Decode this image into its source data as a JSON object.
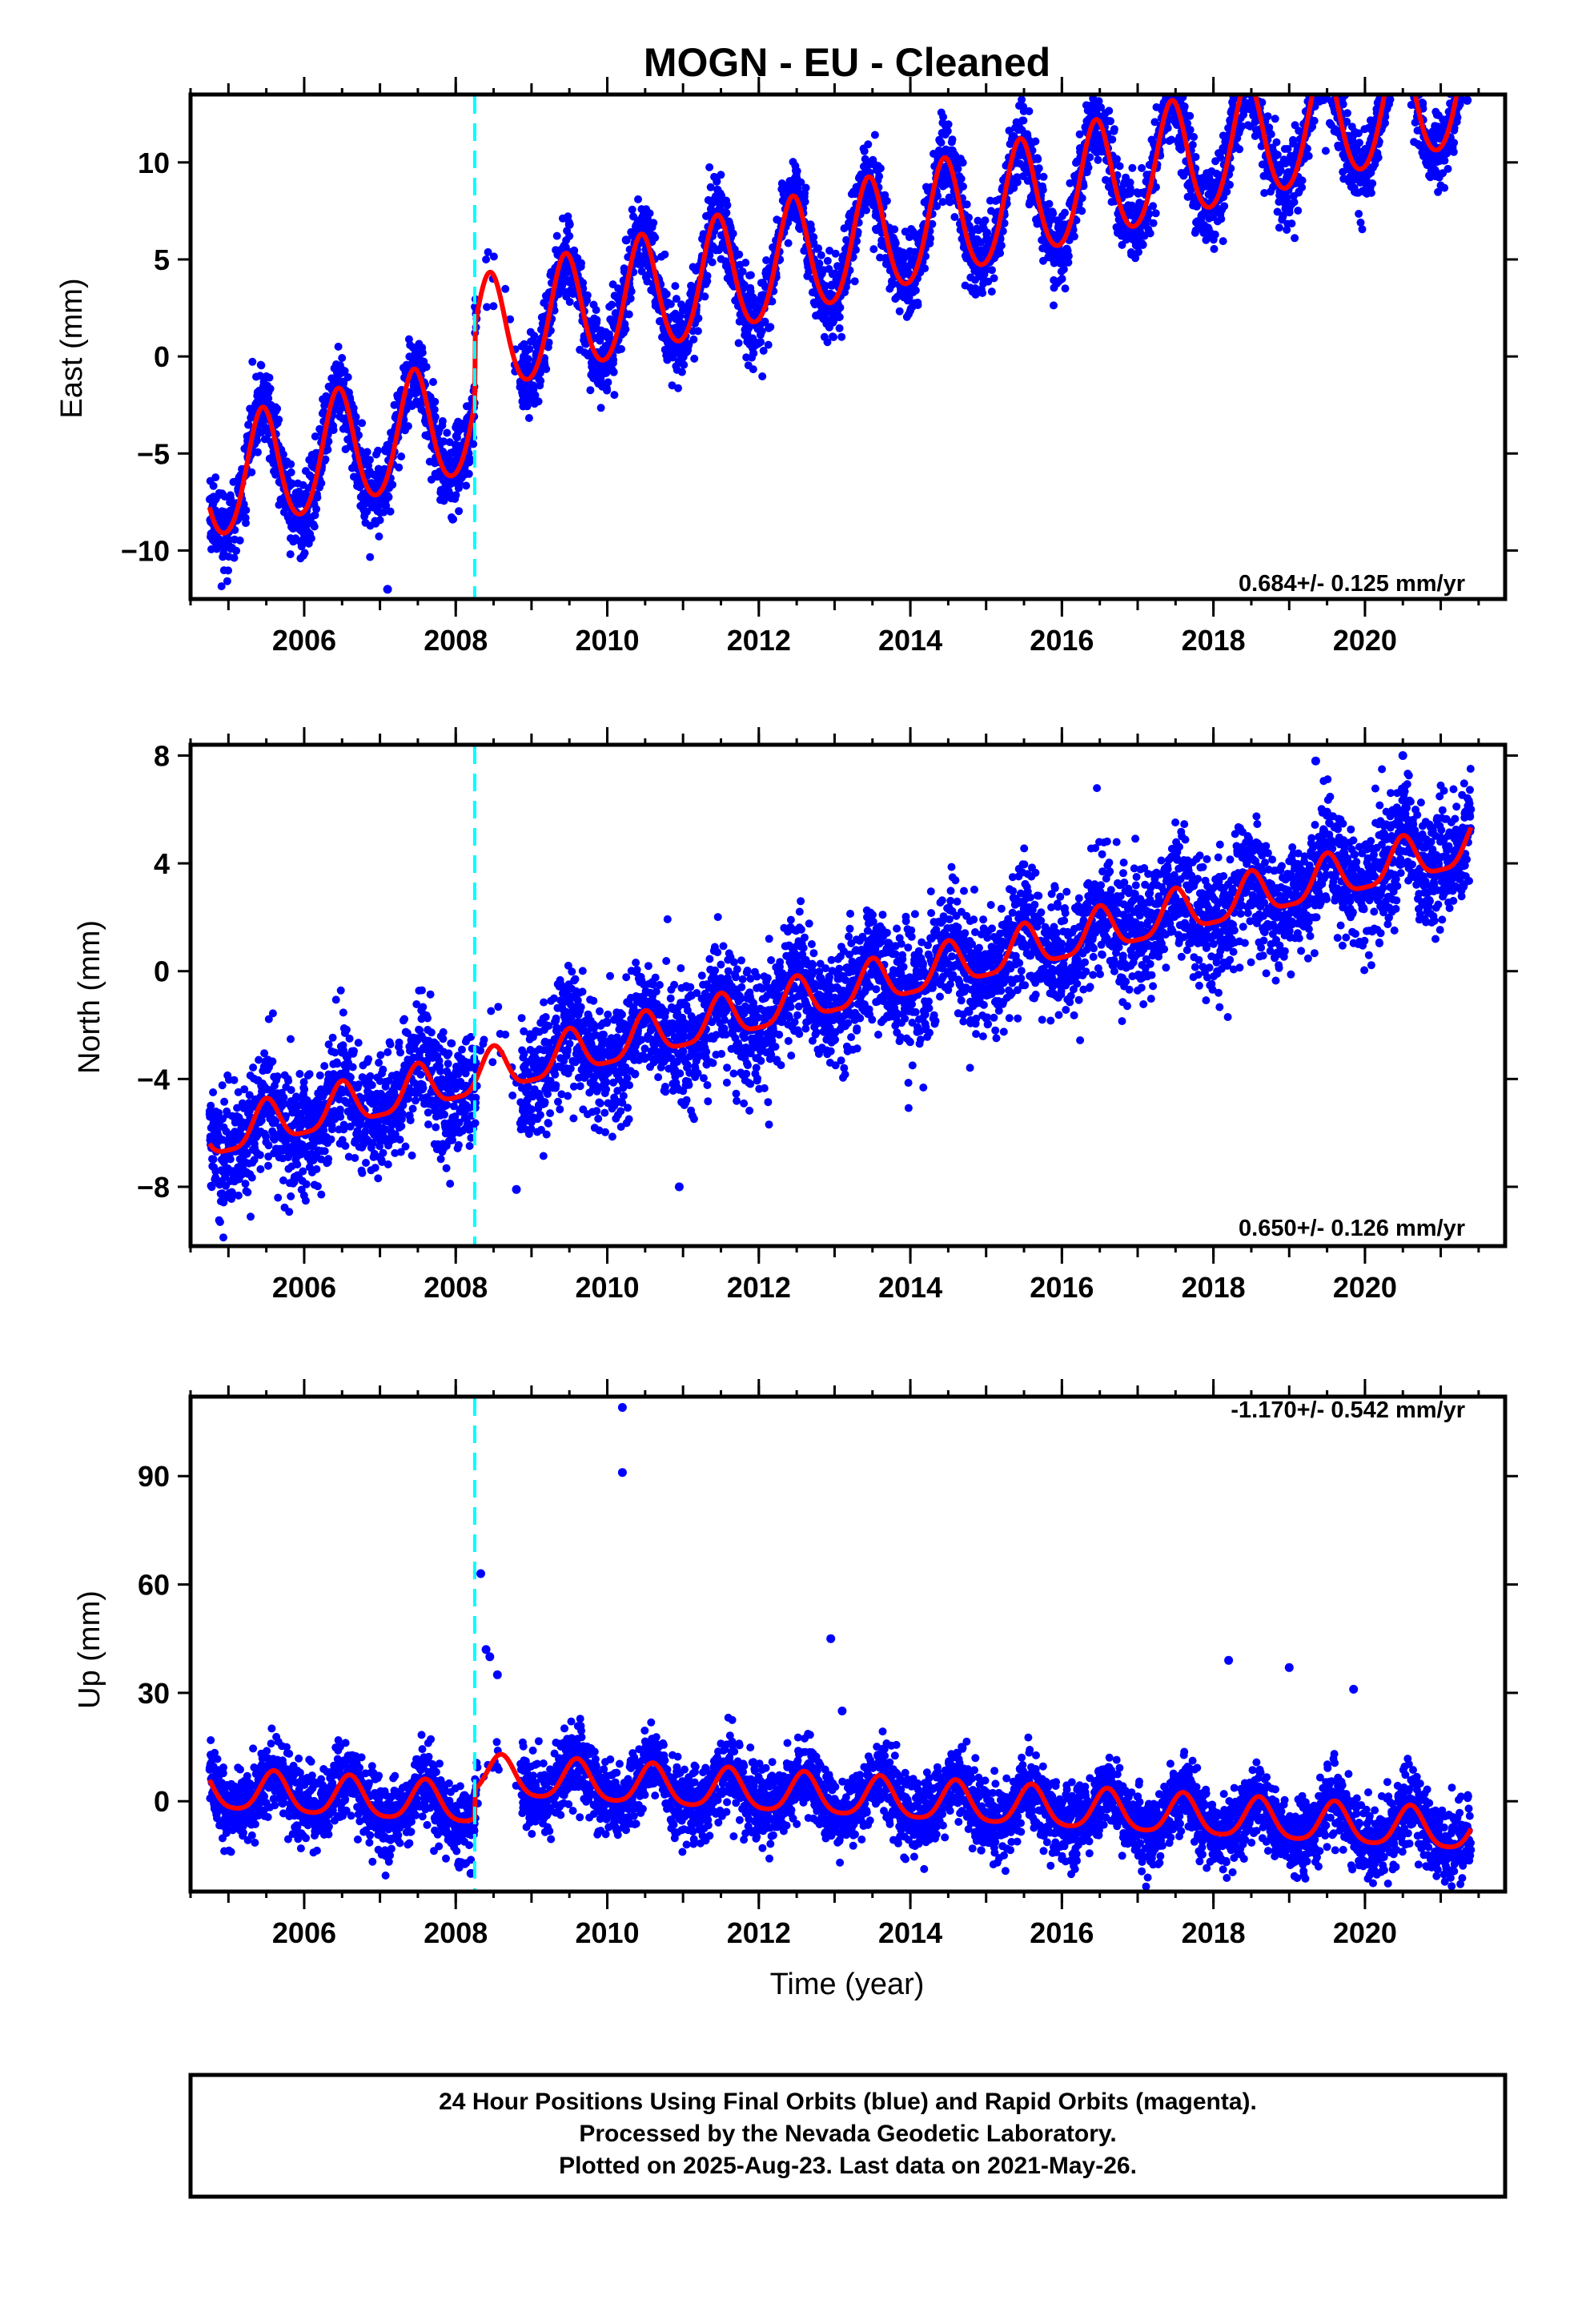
{
  "title": "MOGN  - EU - Cleaned",
  "caption": {
    "line1": "24 Hour Positions Using Final Orbits (blue) and Rapid Orbits (magenta).",
    "line2": "Processed by the Nevada Geodetic Laboratory.",
    "line3": "Plotted on 2025-Aug-23. Last data on 2021-May-26."
  },
  "colors": {
    "data_points": "#0000ff",
    "model_fit": "#ff0000",
    "equipment_change": "#00ffff",
    "frame": "#000000"
  },
  "chart_data": [
    {
      "type": "scatter",
      "component": "East",
      "ylabel": "East (mm)",
      "xlabel": "",
      "xlim": [
        2004.5,
        2021.85
      ],
      "ylim": [
        -12.5,
        13.5
      ],
      "x_ticks": [
        "2006",
        "2008",
        "2010",
        "2012",
        "2014",
        "2016",
        "2018",
        "2020"
      ],
      "y_ticks": [
        "−10",
        "−5",
        "0",
        "5",
        "10"
      ],
      "y_tick_values": [
        -10,
        -5,
        0,
        5,
        10
      ],
      "rate_label": "0.684+/- 0.125 mm/yr",
      "equipment_change_year": 2008.25,
      "data_range": [
        2004.75,
        2021.4
      ],
      "offset_at_break": 4.0,
      "model": {
        "rate_mm_per_yr": 0.684,
        "annual_amplitude_mm": 3.0,
        "annual_peak_year_fraction": 0.45,
        "semiannual_amplitude_mm": 0.3,
        "value_at_2004_75": -6.6,
        "extra_trend_mm_per_yr": 0.3
      },
      "scatter_sigma_mm": 1.0,
      "outliers": [
        [
          2021.35,
          13.2
        ],
        [
          2009.5,
          6.8
        ],
        [
          2010.25,
          6.0
        ],
        [
          2007.1,
          -12.0
        ]
      ]
    },
    {
      "type": "scatter",
      "component": "North",
      "ylabel": "North (mm)",
      "xlabel": "",
      "xlim": [
        2004.5,
        2021.85
      ],
      "ylim": [
        -10.2,
        8.4
      ],
      "x_ticks": [
        "2006",
        "2008",
        "2010",
        "2012",
        "2014",
        "2016",
        "2018",
        "2020"
      ],
      "y_ticks": [
        "−8",
        "−4",
        "0",
        "4",
        "8"
      ],
      "y_tick_values": [
        -8,
        -4,
        0,
        4,
        8
      ],
      "rate_label": "0.650+/- 0.126 mm/yr",
      "equipment_change_year": 2008.25,
      "data_range": [
        2004.75,
        2021.4
      ],
      "offset_at_break": 0.0,
      "model": {
        "rate_mm_per_yr": 0.65,
        "annual_amplitude_mm": 0.8,
        "annual_peak_year_fraction": 0.5,
        "semiannual_amplitude_mm": 0.2,
        "value_at_2004_75": -6.2,
        "extra_trend_mm_per_yr": 0.0
      },
      "scatter_sigma_mm": 1.1,
      "outliers": [
        [
          2010.95,
          -8.0
        ],
        [
          2008.8,
          -8.1
        ],
        [
          2019.35,
          7.8
        ],
        [
          2020.5,
          8.0
        ]
      ]
    },
    {
      "type": "scatter",
      "component": "Up",
      "ylabel": "Up (mm)",
      "xlabel": "Time (year)",
      "xlim": [
        2004.5,
        2021.85
      ],
      "ylim": [
        -25,
        112
      ],
      "x_ticks": [
        "2006",
        "2008",
        "2010",
        "2012",
        "2014",
        "2016",
        "2018",
        "2020"
      ],
      "y_ticks": [
        "0",
        "30",
        "60",
        "90"
      ],
      "y_tick_values": [
        0,
        30,
        60,
        90
      ],
      "rate_label": "-1.170+/- 0.542 mm/yr",
      "equipment_change_year": 2008.25,
      "data_range": [
        2004.75,
        2021.4
      ],
      "offset_at_break": 8.0,
      "model": {
        "rate_mm_per_yr": -1.17,
        "annual_amplitude_mm": 5.5,
        "annual_peak_year_fraction": 0.6,
        "semiannual_amplitude_mm": 1.0,
        "value_at_2004_75": 3.0,
        "extra_trend_mm_per_yr": 0.0
      },
      "scatter_sigma_mm": 5.0,
      "outliers": [
        [
          2010.2,
          109
        ],
        [
          2010.2,
          91
        ],
        [
          2008.33,
          63
        ],
        [
          2008.4,
          42
        ],
        [
          2008.45,
          40
        ],
        [
          2008.55,
          35
        ],
        [
          2012.95,
          45
        ],
        [
          2018.2,
          39
        ],
        [
          2019.0,
          37
        ],
        [
          2019.85,
          31
        ],
        [
          2013.1,
          25
        ],
        [
          2008.2,
          -20
        ]
      ]
    }
  ]
}
